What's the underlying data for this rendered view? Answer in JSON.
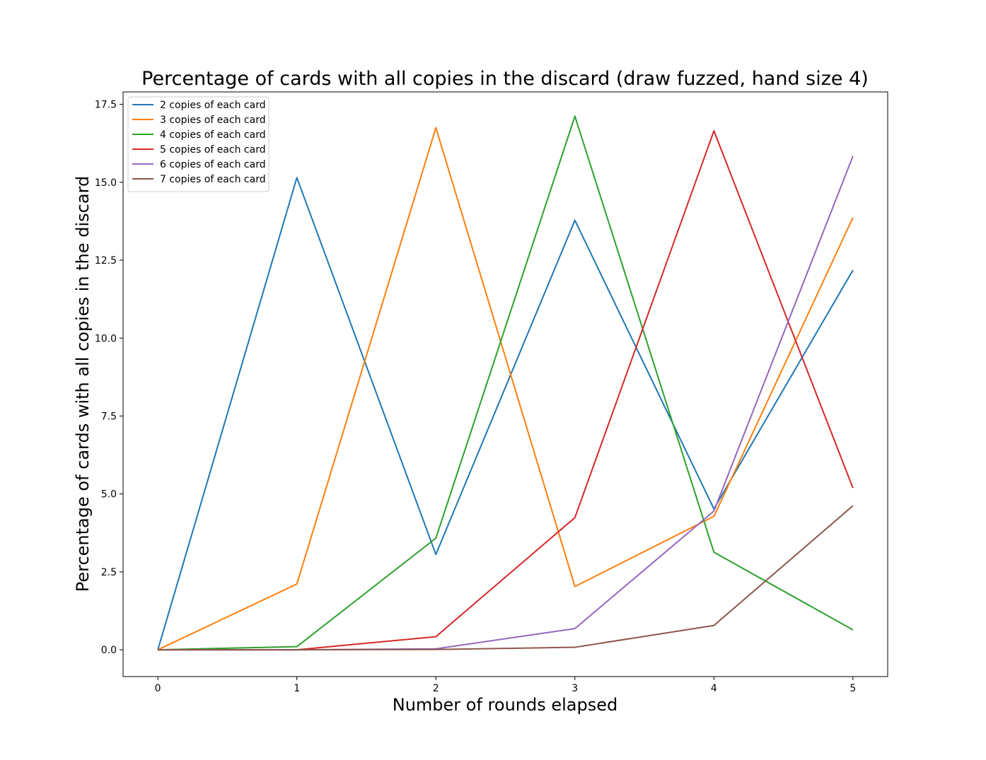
{
  "chart_data": {
    "type": "line",
    "title": "Percentage of cards with all copies in the discard (draw fuzzed, hand size 4)",
    "xlabel": "Number of rounds elapsed",
    "ylabel": "Percentage of cards with all copies in the discard",
    "x": [
      0,
      1,
      2,
      3,
      4,
      5
    ],
    "xlim": [
      -0.25,
      5.25
    ],
    "ylim": [
      -0.86,
      17.9
    ],
    "xticks": [
      "0",
      "1",
      "2",
      "3",
      "4",
      "5"
    ],
    "yticks": [
      "0.0",
      "2.5",
      "5.0",
      "7.5",
      "10.0",
      "12.5",
      "15.0",
      "17.5"
    ],
    "grid": false,
    "legend_position": "top-left",
    "series": [
      {
        "name": "2 copies of each card",
        "color": "#1f77b4",
        "values": [
          0.0,
          15.15,
          3.06,
          13.78,
          4.52,
          12.18
        ]
      },
      {
        "name": "3 copies of each card",
        "color": "#ff7f0e",
        "values": [
          0.0,
          2.11,
          16.75,
          2.03,
          4.28,
          13.87
        ]
      },
      {
        "name": "4 copies of each card",
        "color": "#2ca02c",
        "values": [
          0.0,
          0.1,
          3.58,
          17.12,
          3.13,
          0.64
        ]
      },
      {
        "name": "5 copies of each card",
        "color": "#d62728",
        "values": [
          0.0,
          0.0,
          0.42,
          4.24,
          16.65,
          5.19
        ]
      },
      {
        "name": "6 copies of each card",
        "color": "#9467bd",
        "values": [
          0.0,
          0.0,
          0.03,
          0.68,
          4.45,
          15.84
        ]
      },
      {
        "name": "7 copies of each card",
        "color": "#8c564b",
        "values": [
          0.0,
          0.0,
          0.01,
          0.08,
          0.78,
          4.62
        ]
      }
    ]
  }
}
